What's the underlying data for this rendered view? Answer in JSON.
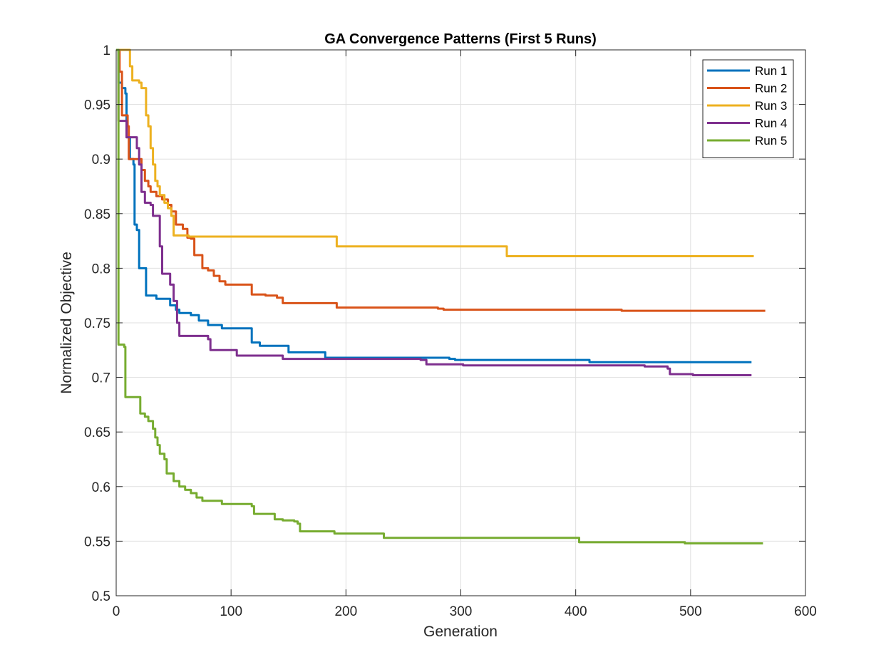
{
  "chart_data": {
    "type": "line",
    "title": "GA Convergence Patterns (First 5 Runs)",
    "xlabel": "Generation",
    "ylabel": "Normalized Objective",
    "xlim": [
      0,
      600
    ],
    "ylim": [
      0.5,
      1
    ],
    "xticks": [
      0,
      100,
      200,
      300,
      400,
      500,
      600
    ],
    "yticks": [
      0.5,
      0.55,
      0.6,
      0.65,
      0.7,
      0.75,
      0.8,
      0.85,
      0.9,
      0.95,
      1
    ],
    "xtick_labels": [
      "0",
      "100",
      "200",
      "300",
      "400",
      "500",
      "600"
    ],
    "ytick_labels": [
      "0.5",
      "0.55",
      "0.6",
      "0.65",
      "0.7",
      "0.75",
      "0.8",
      "0.85",
      "0.9",
      "0.95",
      "1"
    ],
    "grid": true,
    "legend_position": "top-right",
    "series": [
      {
        "name": "Run 1",
        "color": "#0072BD",
        "points": [
          [
            0,
            1.0
          ],
          [
            2,
            0.97
          ],
          [
            5,
            0.965
          ],
          [
            8,
            0.96
          ],
          [
            9,
            0.92
          ],
          [
            12,
            0.9
          ],
          [
            15,
            0.895
          ],
          [
            16,
            0.84
          ],
          [
            18,
            0.835
          ],
          [
            20,
            0.8
          ],
          [
            25,
            0.8
          ],
          [
            26,
            0.775
          ],
          [
            30,
            0.775
          ],
          [
            35,
            0.772
          ],
          [
            45,
            0.772
          ],
          [
            47,
            0.766
          ],
          [
            52,
            0.762
          ],
          [
            55,
            0.759
          ],
          [
            65,
            0.757
          ],
          [
            72,
            0.752
          ],
          [
            80,
            0.748
          ],
          [
            90,
            0.748
          ],
          [
            92,
            0.745
          ],
          [
            115,
            0.745
          ],
          [
            118,
            0.732
          ],
          [
            125,
            0.729
          ],
          [
            140,
            0.729
          ],
          [
            150,
            0.723
          ],
          [
            180,
            0.723
          ],
          [
            182,
            0.718
          ],
          [
            190,
            0.718
          ],
          [
            290,
            0.717
          ],
          [
            295,
            0.716
          ],
          [
            410,
            0.716
          ],
          [
            412,
            0.714
          ],
          [
            553,
            0.714
          ]
        ]
      },
      {
        "name": "Run 2",
        "color": "#D95319",
        "points": [
          [
            0,
            1.0
          ],
          [
            3,
            0.98
          ],
          [
            5,
            0.94
          ],
          [
            10,
            0.93
          ],
          [
            11,
            0.9
          ],
          [
            20,
            0.9
          ],
          [
            22,
            0.89
          ],
          [
            25,
            0.88
          ],
          [
            28,
            0.875
          ],
          [
            30,
            0.87
          ],
          [
            35,
            0.866
          ],
          [
            40,
            0.863
          ],
          [
            45,
            0.858
          ],
          [
            48,
            0.852
          ],
          [
            52,
            0.84
          ],
          [
            58,
            0.836
          ],
          [
            62,
            0.828
          ],
          [
            65,
            0.827
          ],
          [
            68,
            0.812
          ],
          [
            75,
            0.8
          ],
          [
            80,
            0.798
          ],
          [
            85,
            0.793
          ],
          [
            90,
            0.788
          ],
          [
            95,
            0.785
          ],
          [
            115,
            0.785
          ],
          [
            118,
            0.776
          ],
          [
            130,
            0.775
          ],
          [
            140,
            0.773
          ],
          [
            145,
            0.768
          ],
          [
            190,
            0.768
          ],
          [
            192,
            0.764
          ],
          [
            240,
            0.764
          ],
          [
            280,
            0.763
          ],
          [
            285,
            0.762
          ],
          [
            437,
            0.762
          ],
          [
            440,
            0.761
          ],
          [
            565,
            0.761
          ]
        ]
      },
      {
        "name": "Run 3",
        "color": "#EDB120",
        "points": [
          [
            0,
            1.0
          ],
          [
            10,
            1.0
          ],
          [
            12,
            0.985
          ],
          [
            14,
            0.972
          ],
          [
            20,
            0.97
          ],
          [
            22,
            0.965
          ],
          [
            25,
            0.965
          ],
          [
            26,
            0.94
          ],
          [
            28,
            0.93
          ],
          [
            30,
            0.91
          ],
          [
            32,
            0.895
          ],
          [
            34,
            0.88
          ],
          [
            36,
            0.875
          ],
          [
            38,
            0.867
          ],
          [
            42,
            0.86
          ],
          [
            45,
            0.855
          ],
          [
            48,
            0.848
          ],
          [
            50,
            0.83
          ],
          [
            60,
            0.83
          ],
          [
            63,
            0.829
          ],
          [
            190,
            0.829
          ],
          [
            192,
            0.82
          ],
          [
            330,
            0.82
          ],
          [
            338,
            0.82
          ],
          [
            340,
            0.811
          ],
          [
            555,
            0.811
          ]
        ]
      },
      {
        "name": "Run 4",
        "color": "#7E2F8E",
        "points": [
          [
            0,
            1.0
          ],
          [
            2,
            0.935
          ],
          [
            8,
            0.935
          ],
          [
            9,
            0.92
          ],
          [
            15,
            0.92
          ],
          [
            18,
            0.91
          ],
          [
            20,
            0.895
          ],
          [
            22,
            0.87
          ],
          [
            25,
            0.86
          ],
          [
            30,
            0.858
          ],
          [
            32,
            0.848
          ],
          [
            36,
            0.848
          ],
          [
            38,
            0.82
          ],
          [
            40,
            0.795
          ],
          [
            45,
            0.795
          ],
          [
            47,
            0.785
          ],
          [
            50,
            0.77
          ],
          [
            53,
            0.75
          ],
          [
            55,
            0.738
          ],
          [
            75,
            0.738
          ],
          [
            80,
            0.735
          ],
          [
            82,
            0.725
          ],
          [
            95,
            0.725
          ],
          [
            105,
            0.72
          ],
          [
            110,
            0.72
          ],
          [
            140,
            0.72
          ],
          [
            145,
            0.717
          ],
          [
            265,
            0.716
          ],
          [
            270,
            0.712
          ],
          [
            300,
            0.712
          ],
          [
            302,
            0.711
          ],
          [
            450,
            0.711
          ],
          [
            460,
            0.71
          ],
          [
            480,
            0.708
          ],
          [
            482,
            0.703
          ],
          [
            500,
            0.703
          ],
          [
            502,
            0.702
          ],
          [
            553,
            0.702
          ]
        ]
      },
      {
        "name": "Run 5",
        "color": "#77AC30",
        "points": [
          [
            0,
            1.0
          ],
          [
            2,
            0.73
          ],
          [
            7,
            0.728
          ],
          [
            8,
            0.682
          ],
          [
            20,
            0.682
          ],
          [
            21,
            0.667
          ],
          [
            25,
            0.664
          ],
          [
            28,
            0.66
          ],
          [
            32,
            0.653
          ],
          [
            34,
            0.645
          ],
          [
            36,
            0.638
          ],
          [
            38,
            0.63
          ],
          [
            42,
            0.625
          ],
          [
            44,
            0.612
          ],
          [
            50,
            0.605
          ],
          [
            55,
            0.6
          ],
          [
            60,
            0.597
          ],
          [
            65,
            0.594
          ],
          [
            70,
            0.59
          ],
          [
            75,
            0.587
          ],
          [
            90,
            0.587
          ],
          [
            92,
            0.584
          ],
          [
            110,
            0.584
          ],
          [
            118,
            0.582
          ],
          [
            120,
            0.575
          ],
          [
            135,
            0.575
          ],
          [
            138,
            0.57
          ],
          [
            145,
            0.569
          ],
          [
            155,
            0.568
          ],
          [
            158,
            0.566
          ],
          [
            160,
            0.559
          ],
          [
            185,
            0.559
          ],
          [
            190,
            0.557
          ],
          [
            230,
            0.557
          ],
          [
            233,
            0.553
          ],
          [
            400,
            0.553
          ],
          [
            403,
            0.549
          ],
          [
            490,
            0.549
          ],
          [
            495,
            0.548
          ],
          [
            563,
            0.548
          ]
        ]
      }
    ]
  }
}
